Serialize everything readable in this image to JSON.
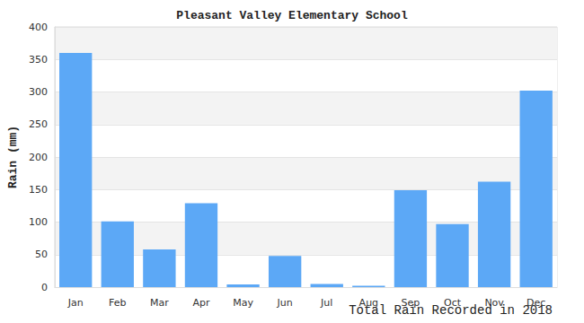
{
  "chart_data": {
    "type": "bar",
    "title": "Pleasant Valley Elementary School",
    "x_label": "Total Rain Recorded in 2018",
    "y_label": "Rain (mm)",
    "categories": [
      "Jan",
      "Feb",
      "Mar",
      "Apr",
      "May",
      "Jun",
      "Jul",
      "Aug",
      "Sep",
      "Oct",
      "Nov",
      "Dec"
    ],
    "values": [
      360,
      101,
      58,
      129,
      4,
      48,
      5,
      2,
      149,
      97,
      162,
      302
    ],
    "color": "#5ca8f6",
    "ylim": [
      0,
      400
    ],
    "yticks": [
      0,
      50,
      100,
      150,
      200,
      250,
      300,
      350,
      400
    ],
    "grid": true
  }
}
